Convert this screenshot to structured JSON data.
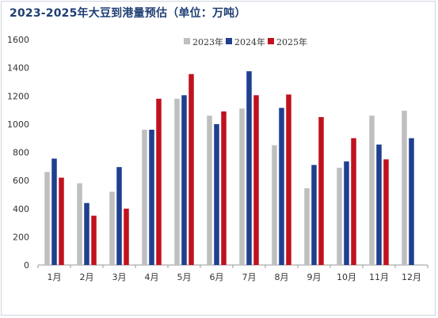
{
  "chart_data": {
    "type": "bar",
    "title": "2023-2025年大豆到港量预估（单位：万吨）",
    "categories": [
      "1月",
      "2月",
      "3月",
      "4月",
      "5月",
      "6月",
      "7月",
      "8月",
      "9月",
      "10月",
      "11月",
      "12月"
    ],
    "series": [
      {
        "name": "2023年",
        "color": "#bfbfbf",
        "values": [
          660,
          580,
          520,
          960,
          1180,
          1060,
          1110,
          850,
          545,
          690,
          1060,
          1095
        ]
      },
      {
        "name": "2024年",
        "color": "#1f3f8f",
        "values": [
          755,
          440,
          695,
          960,
          1205,
          1000,
          1375,
          1115,
          710,
          735,
          855,
          900
        ]
      },
      {
        "name": "2025年",
        "color": "#c0111f",
        "values": [
          620,
          350,
          400,
          1180,
          1355,
          1090,
          1205,
          1210,
          1050,
          900,
          750,
          null
        ]
      }
    ],
    "ylim": [
      0,
      1600
    ],
    "yticks": [
      0,
      200,
      400,
      600,
      800,
      1000,
      1200,
      1400,
      1600
    ],
    "xlabel": "",
    "ylabel": "",
    "grid": false,
    "legend_position": "top-right"
  }
}
